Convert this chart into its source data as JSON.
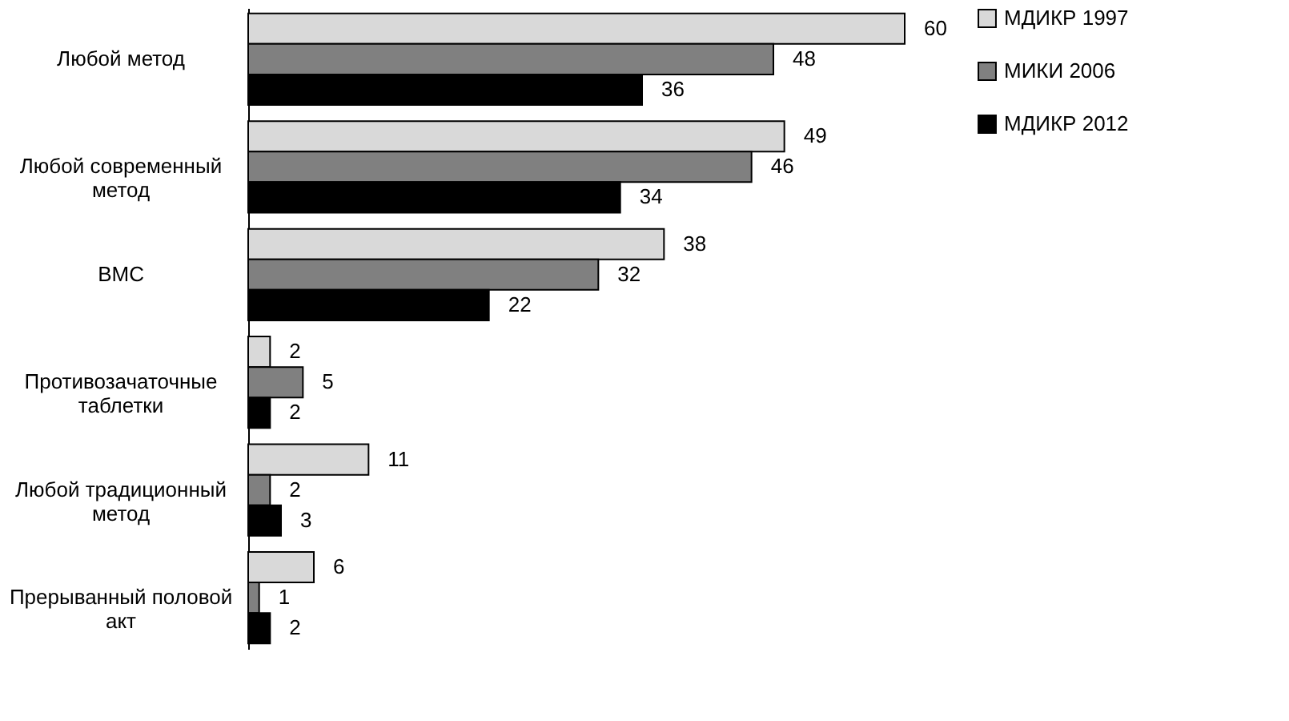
{
  "chart_data": {
    "type": "bar",
    "orientation": "horizontal",
    "data_labels": true,
    "legend": "right",
    "grid": false,
    "categories": [
      "Любой метод",
      "Любой современный метод",
      "ВМС",
      "Противозачаточные таблетки",
      "Любой традиционный метод",
      "Прерыванный половой акт"
    ],
    "series": [
      {
        "name": "МДИКР 1997",
        "color": "#d9d9d9",
        "values": [
          60,
          49,
          38,
          2,
          11,
          6
        ]
      },
      {
        "name": "МИКИ 2006",
        "color": "#808080",
        "values": [
          48,
          46,
          32,
          5,
          2,
          1
        ]
      },
      {
        "name": "МДИКР 2012",
        "color": "#000000",
        "values": [
          36,
          34,
          22,
          2,
          3,
          2
        ]
      }
    ]
  }
}
